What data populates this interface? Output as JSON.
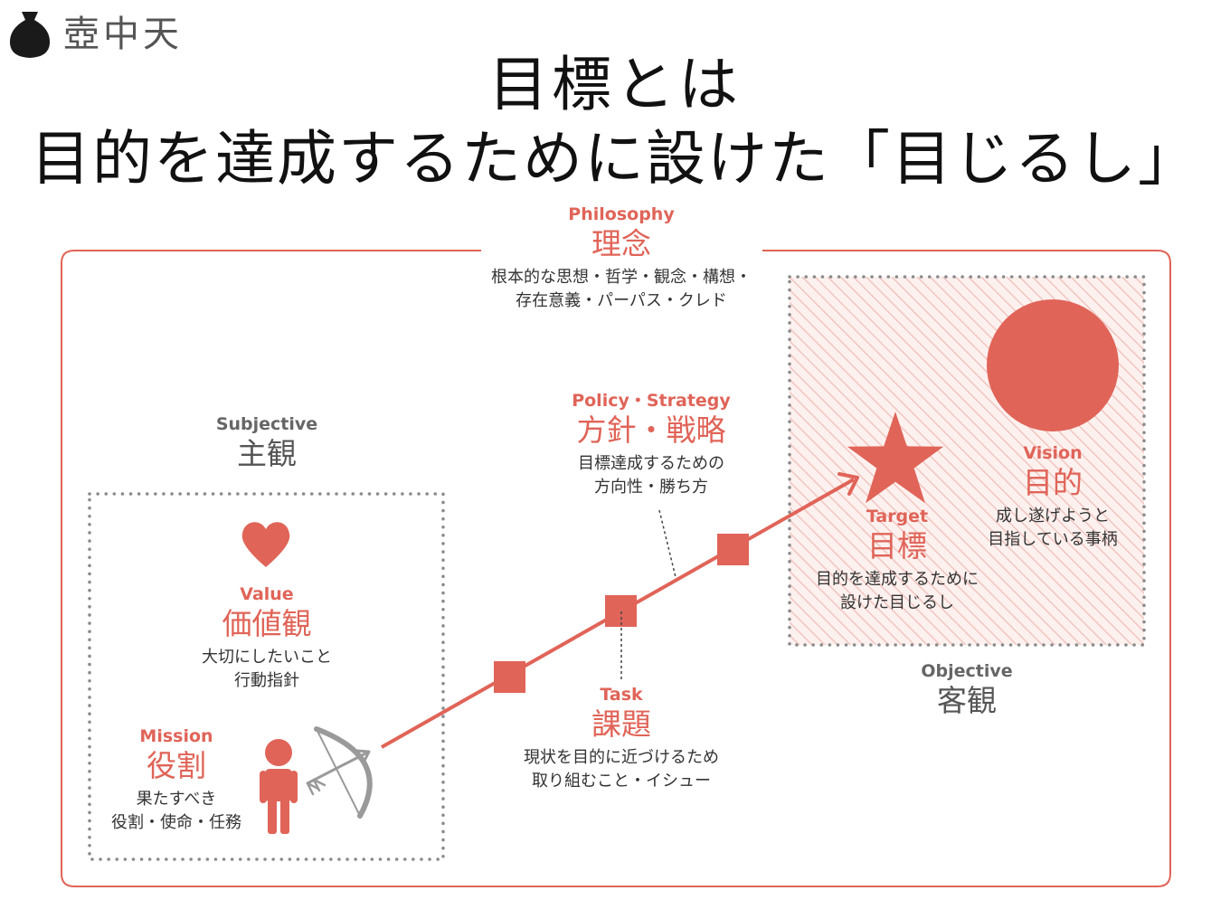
{
  "logo": {
    "text": "壺中天",
    "icon": "jar-icon"
  },
  "title": {
    "line1": "目標とは",
    "line2": "目的を達成するために設けた「目じるし」"
  },
  "philosophy": {
    "en": "Philosophy",
    "jp": "理念",
    "desc1": "根本的な思想・哲学・観念・構想・",
    "desc2": "存在意義・パーパス・クレド"
  },
  "subjective": {
    "en": "Subjective",
    "jp": "主観"
  },
  "objective": {
    "en": "Objective",
    "jp": "客観"
  },
  "value": {
    "en": "Value",
    "jp": "価値観",
    "desc1": "大切にしたいこと",
    "desc2": "行動指針",
    "icon": "heart-icon"
  },
  "mission": {
    "en": "Mission",
    "jp": "役割",
    "desc1": "果たすべき",
    "desc2": "役割・使命・任務",
    "icons": [
      "person-icon",
      "bow-and-arrow-icon"
    ]
  },
  "policy": {
    "en": "Policy・Strategy",
    "jp": "方針・戦略",
    "desc1": "目標達成するための",
    "desc2": "方向性・勝ち方"
  },
  "task": {
    "en": "Task",
    "jp": "課題",
    "desc1": "現状を目的に近づけるため",
    "desc2": "取り組むこと・イシュー"
  },
  "target": {
    "en": "Target",
    "jp": "目標",
    "desc1": "目的を達成するために",
    "desc2": "設けた目じるし",
    "icon": "star-icon"
  },
  "vision": {
    "en": "Vision",
    "jp": "目的",
    "desc1": "成し遂げようと",
    "desc2": "目指している事柄",
    "icon": "circle-icon"
  },
  "colors": {
    "accent": "#e06458",
    "text": "#333333",
    "grey": "#666666",
    "dots": "#8a8a8a"
  }
}
